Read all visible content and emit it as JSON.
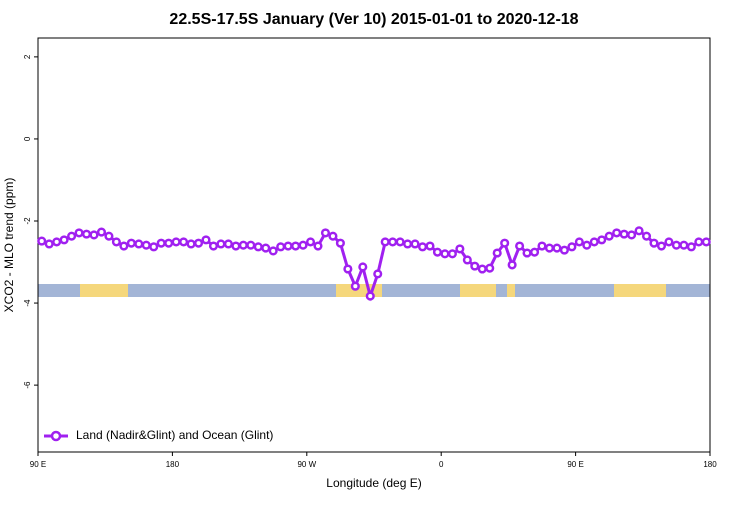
{
  "chart_data": {
    "type": "line",
    "title": "22.5S-17.5S January (Ver 10)   2015-01-01 to 2020-12-18",
    "x_label": "Longitude (deg E)",
    "y_label": "XCO2 - MLO trend (ppm)",
    "xlim": [
      90,
      540
    ],
    "ylim": [
      -7.63,
      2.46
    ],
    "xticks": [
      {
        "value": 90,
        "label": "90 E"
      },
      {
        "value": 180,
        "label": "180"
      },
      {
        "value": 270,
        "label": "90 W"
      },
      {
        "value": 360,
        "label": "0"
      },
      {
        "value": 450,
        "label": "90 E"
      },
      {
        "value": 540,
        "label": "180"
      }
    ],
    "yticks": [
      -6,
      -4,
      -2,
      0,
      2
    ],
    "legend": "bottom-left",
    "x": [
      92.5,
      97.5,
      102.5,
      107.5,
      112.5,
      117.5,
      122.5,
      127.5,
      132.5,
      137.5,
      142.5,
      147.5,
      152.5,
      157.5,
      162.5,
      167.5,
      172.5,
      177.5,
      182.5,
      187.5,
      192.5,
      197.5,
      202.5,
      207.5,
      212.5,
      217.5,
      222.5,
      227.5,
      232.5,
      237.5,
      242.5,
      247.5,
      252.5,
      257.5,
      262.5,
      267.5,
      272.5,
      277.5,
      282.5,
      287.5,
      292.5,
      297.5,
      302.5,
      307.5,
      312.5,
      317.5,
      322.5,
      327.5,
      332.5,
      337.5,
      342.5,
      347.5,
      352.5,
      357.5,
      362.5,
      367.5,
      372.5,
      377.5,
      382.5,
      387.5,
      392.5,
      397.5,
      402.5,
      407.5,
      412.5,
      417.5,
      422.5,
      427.5,
      432.5,
      437.5,
      442.5,
      447.5,
      452.5,
      457.5,
      462.5,
      467.5,
      472.5,
      477.5,
      482.5,
      487.5,
      492.5,
      497.5,
      502.5,
      507.5,
      512.5,
      517.5,
      522.5,
      527.5,
      532.5,
      537.5
    ],
    "series": [
      {
        "name": "Land (Nadir&Glint) and Ocean (Glint)",
        "color": "#a020f0",
        "values": [
          -2.49,
          -2.56,
          -2.51,
          -2.46,
          -2.37,
          -2.29,
          -2.32,
          -2.34,
          -2.27,
          -2.37,
          -2.51,
          -2.61,
          -2.54,
          -2.56,
          -2.59,
          -2.63,
          -2.54,
          -2.54,
          -2.51,
          -2.51,
          -2.56,
          -2.54,
          -2.46,
          -2.61,
          -2.56,
          -2.56,
          -2.61,
          -2.59,
          -2.59,
          -2.63,
          -2.66,
          -2.73,
          -2.63,
          -2.61,
          -2.61,
          -2.59,
          -2.51,
          -2.61,
          -2.29,
          -2.37,
          -2.54,
          -3.17,
          -3.59,
          -3.12,
          -3.83,
          -3.29,
          -2.51,
          -2.51,
          -2.51,
          -2.56,
          -2.56,
          -2.63,
          -2.61,
          -2.76,
          -2.8,
          -2.8,
          -2.68,
          -2.95,
          -3.1,
          -3.17,
          -3.15,
          -2.78,
          -2.54,
          -3.07,
          -2.61,
          -2.78,
          -2.76,
          -2.61,
          -2.66,
          -2.66,
          -2.71,
          -2.63,
          -2.51,
          -2.59,
          -2.51,
          -2.46,
          -2.37,
          -2.29,
          -2.32,
          -2.34,
          -2.24,
          -2.37,
          -2.54,
          -2.61,
          -2.51,
          -2.59,
          -2.59,
          -2.63,
          -2.51,
          -2.51
        ]
      }
    ]
  }
}
